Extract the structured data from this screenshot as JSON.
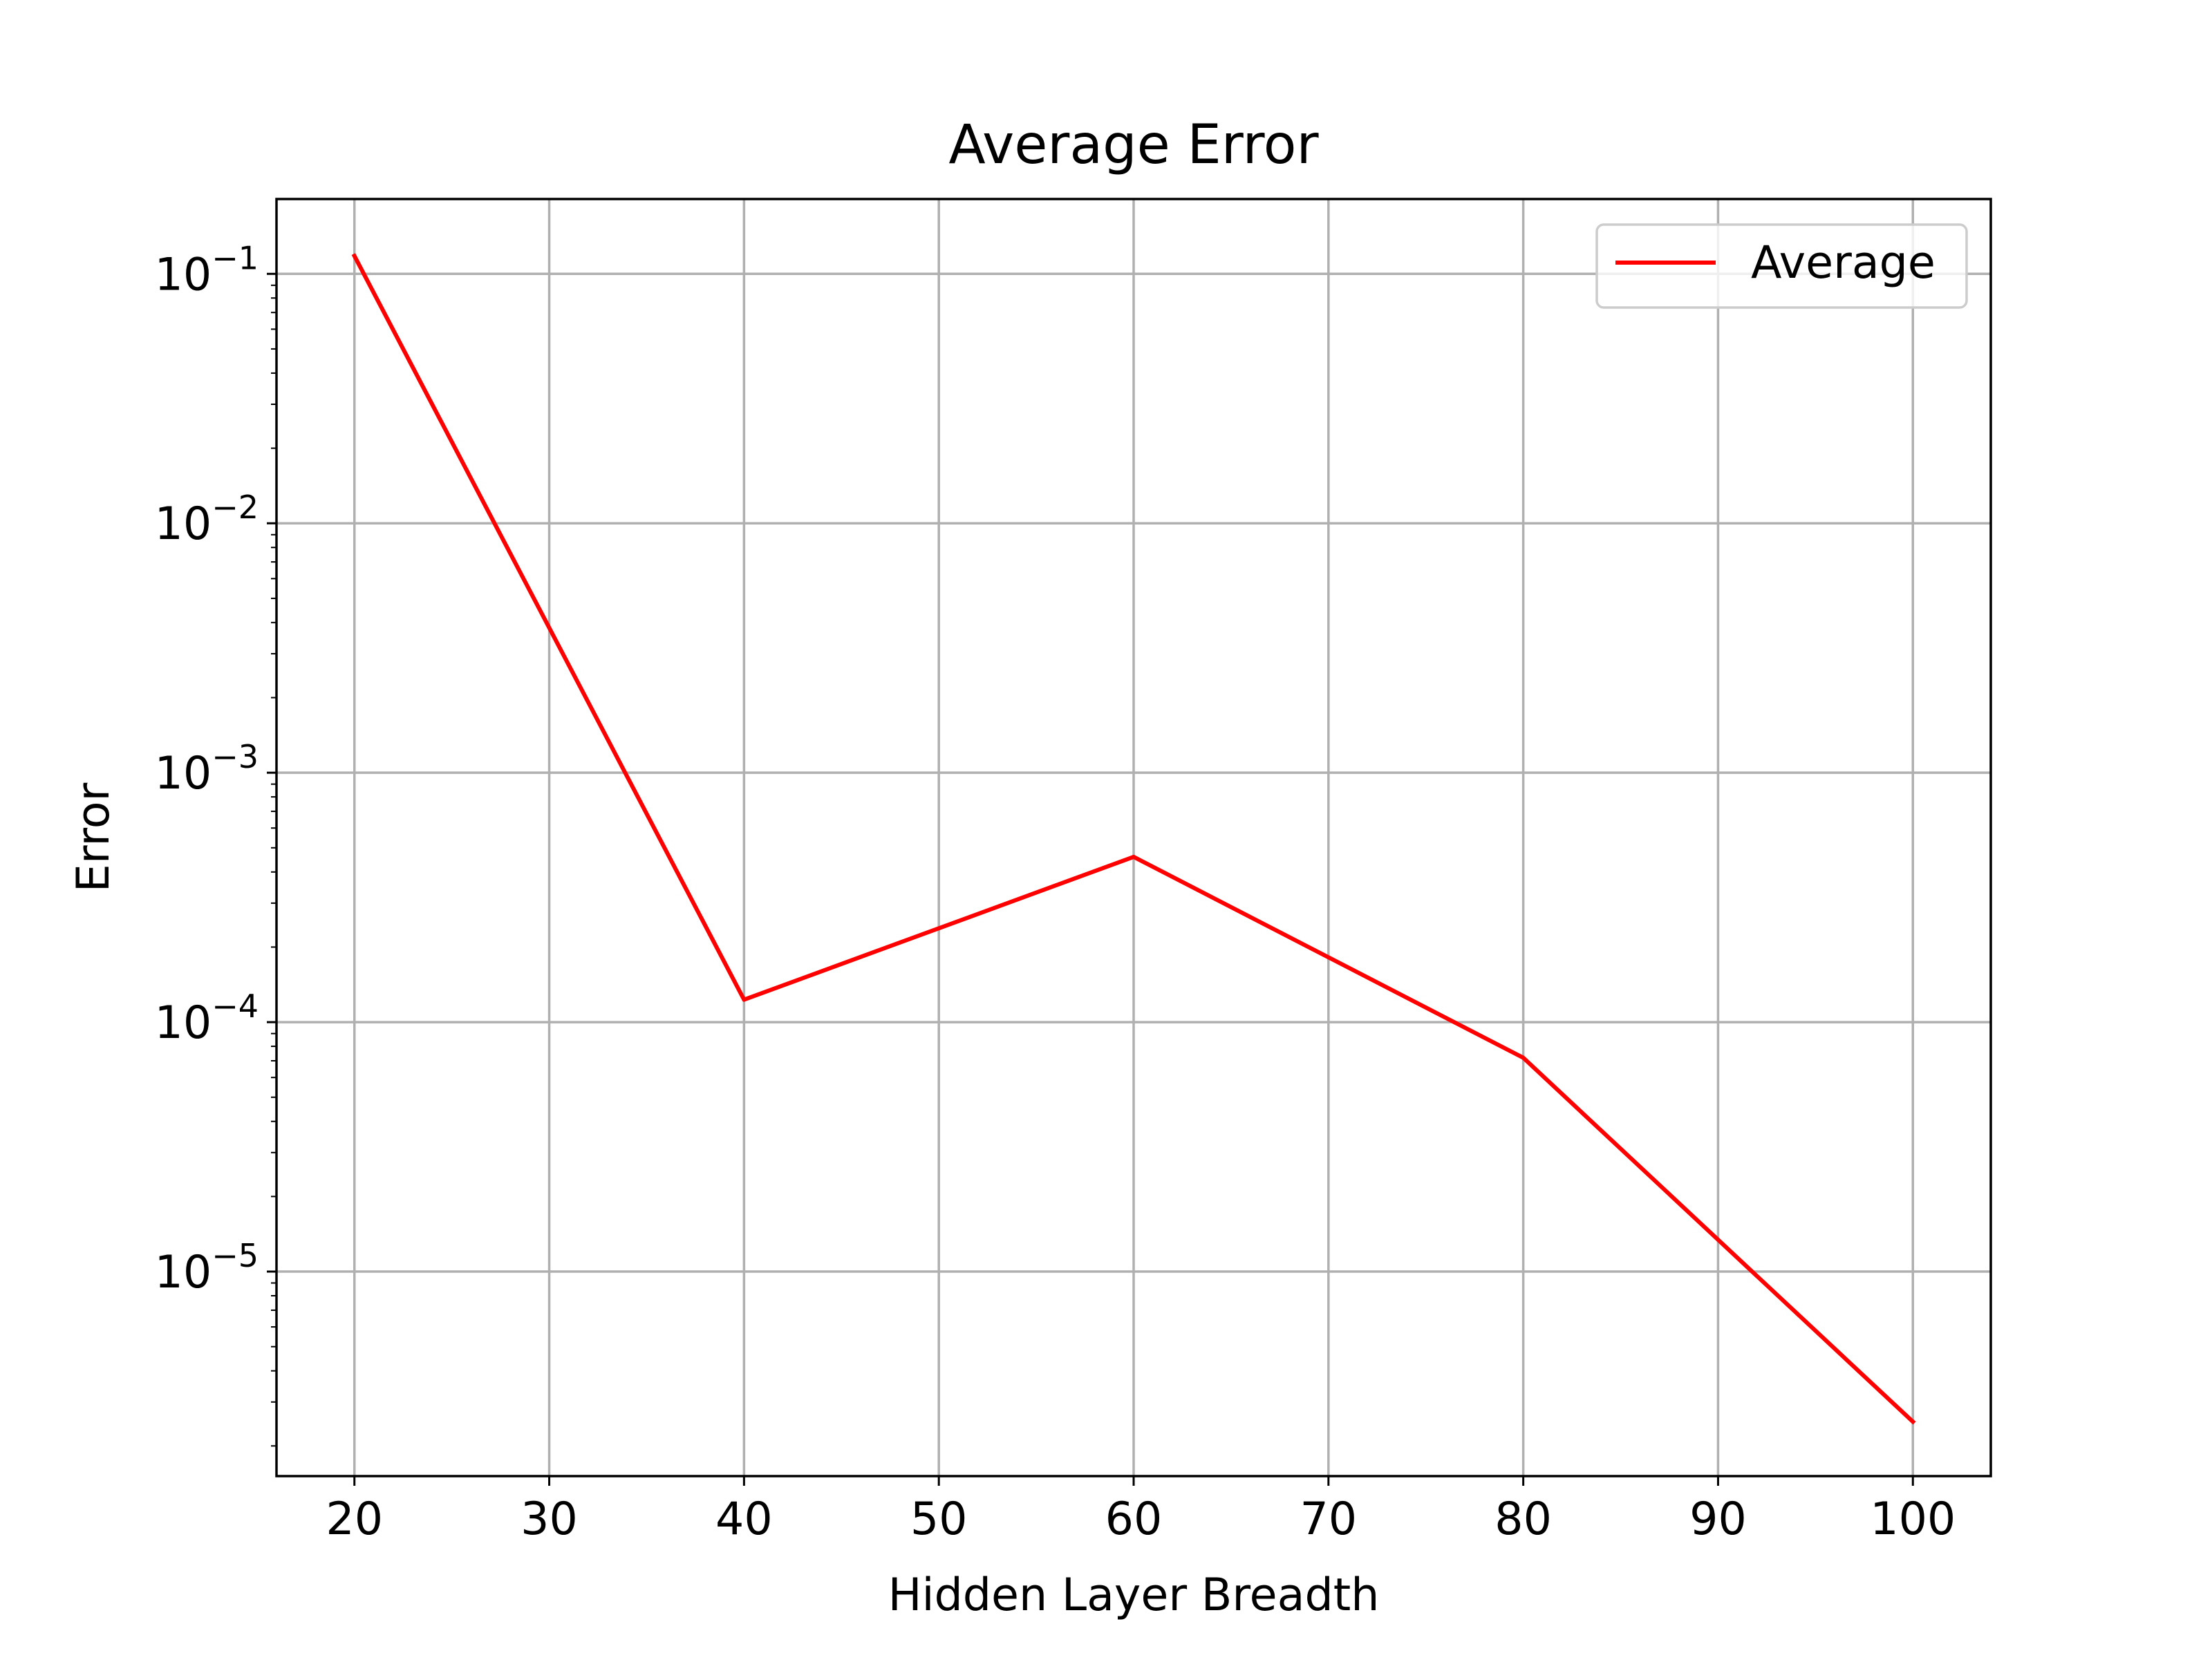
{
  "chart_data": {
    "type": "line",
    "title": "Average Error",
    "xlabel": "Hidden Layer Breadth",
    "ylabel": "Error",
    "y_scale": "log",
    "xlim": [
      16,
      104
    ],
    "ylim_log10": [
      -5.82,
      -0.7
    ],
    "x_ticks": [
      20,
      30,
      40,
      50,
      60,
      70,
      80,
      90,
      100
    ],
    "y_ticks": [
      {
        "value": 0.1,
        "base": "10",
        "exp": "−1"
      },
      {
        "value": 0.01,
        "base": "10",
        "exp": "−2"
      },
      {
        "value": 0.001,
        "base": "10",
        "exp": "−3"
      },
      {
        "value": 0.0001,
        "base": "10",
        "exp": "−4"
      },
      {
        "value": 1e-05,
        "base": "10",
        "exp": "−5"
      }
    ],
    "grid": true,
    "legend_position": "top-right",
    "series": [
      {
        "name": "Average",
        "color": "#ff0000",
        "x": [
          20,
          40,
          60,
          80,
          100
        ],
        "y": [
          0.118,
          0.000123,
          0.00046,
          7.2e-05,
          2.5e-06
        ]
      }
    ]
  }
}
